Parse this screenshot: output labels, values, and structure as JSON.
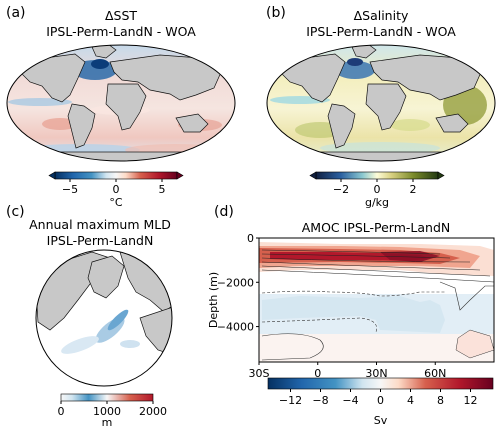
{
  "panels": {
    "a": {
      "label": "(a)",
      "title_line1": "ΔSST",
      "title_line2": "IPSL-Perm-LandN - WOA",
      "colorbar": {
        "ticks": [
          "−5",
          "0",
          "5"
        ],
        "unit": "°C",
        "colormap": "RdBu_r"
      }
    },
    "b": {
      "label": "(b)",
      "title_line1": "ΔSalinity",
      "title_line2": "IPSL-Perm-LandN - WOA",
      "colorbar": {
        "ticks": [
          "−2",
          "0",
          "2"
        ],
        "unit": "g/kg",
        "colormap": "delta (blue-white-olive)"
      }
    },
    "c": {
      "label": "(c)",
      "title_line1": "Annual maximum MLD",
      "title_line2": "IPSL-Perm-LandN",
      "colorbar": {
        "ticks": [
          "0",
          "1000",
          "2000"
        ],
        "unit": "m",
        "colormap": "RdBu_r (0 white)"
      }
    },
    "d": {
      "label": "(d)",
      "title": "AMOC IPSL-Perm-LandN",
      "ylabel": "Depth (m)",
      "colorbar_unit": "Sv"
    }
  },
  "chart_data": [
    {
      "type": "heatmap",
      "title": "ΔSST IPSL-Perm-LandN - WOA",
      "colorbar_ticks": [
        -5,
        0,
        5
      ],
      "colorbar_unit": "°C",
      "clim": [
        -6,
        6
      ]
    },
    {
      "type": "heatmap",
      "title": "ΔSalinity IPSL-Perm-LandN - WOA",
      "colorbar_ticks": [
        -2,
        0,
        2
      ],
      "colorbar_unit": "g/kg",
      "clim": [
        -3,
        3
      ]
    },
    {
      "type": "heatmap",
      "title": "Annual maximum MLD IPSL-Perm-LandN",
      "colorbar_ticks": [
        0,
        1000,
        2000
      ],
      "colorbar_unit": "m",
      "clim": [
        0,
        2000
      ]
    },
    {
      "type": "heatmap",
      "title": "AMOC IPSL-Perm-LandN",
      "xlabel": "",
      "ylabel": "Depth (m)",
      "x_ticks": [
        "30S",
        "0",
        "30N",
        "60N"
      ],
      "x_tick_values": [
        -30,
        0,
        30,
        60
      ],
      "xlim": [
        -30,
        90
      ],
      "y_ticks": [
        "0",
        "−2000",
        "−4000"
      ],
      "y_tick_values": [
        0,
        -2000,
        -4000
      ],
      "ylim": [
        -5600,
        0
      ],
      "colorbar_ticks": [
        "−12",
        "−8",
        "−4",
        "0",
        "4",
        "8",
        "12"
      ],
      "colorbar_tick_values": [
        -12,
        -8,
        -4,
        0,
        4,
        8,
        12
      ],
      "colorbar_unit": "Sv",
      "clim": [
        -15,
        15
      ]
    }
  ]
}
